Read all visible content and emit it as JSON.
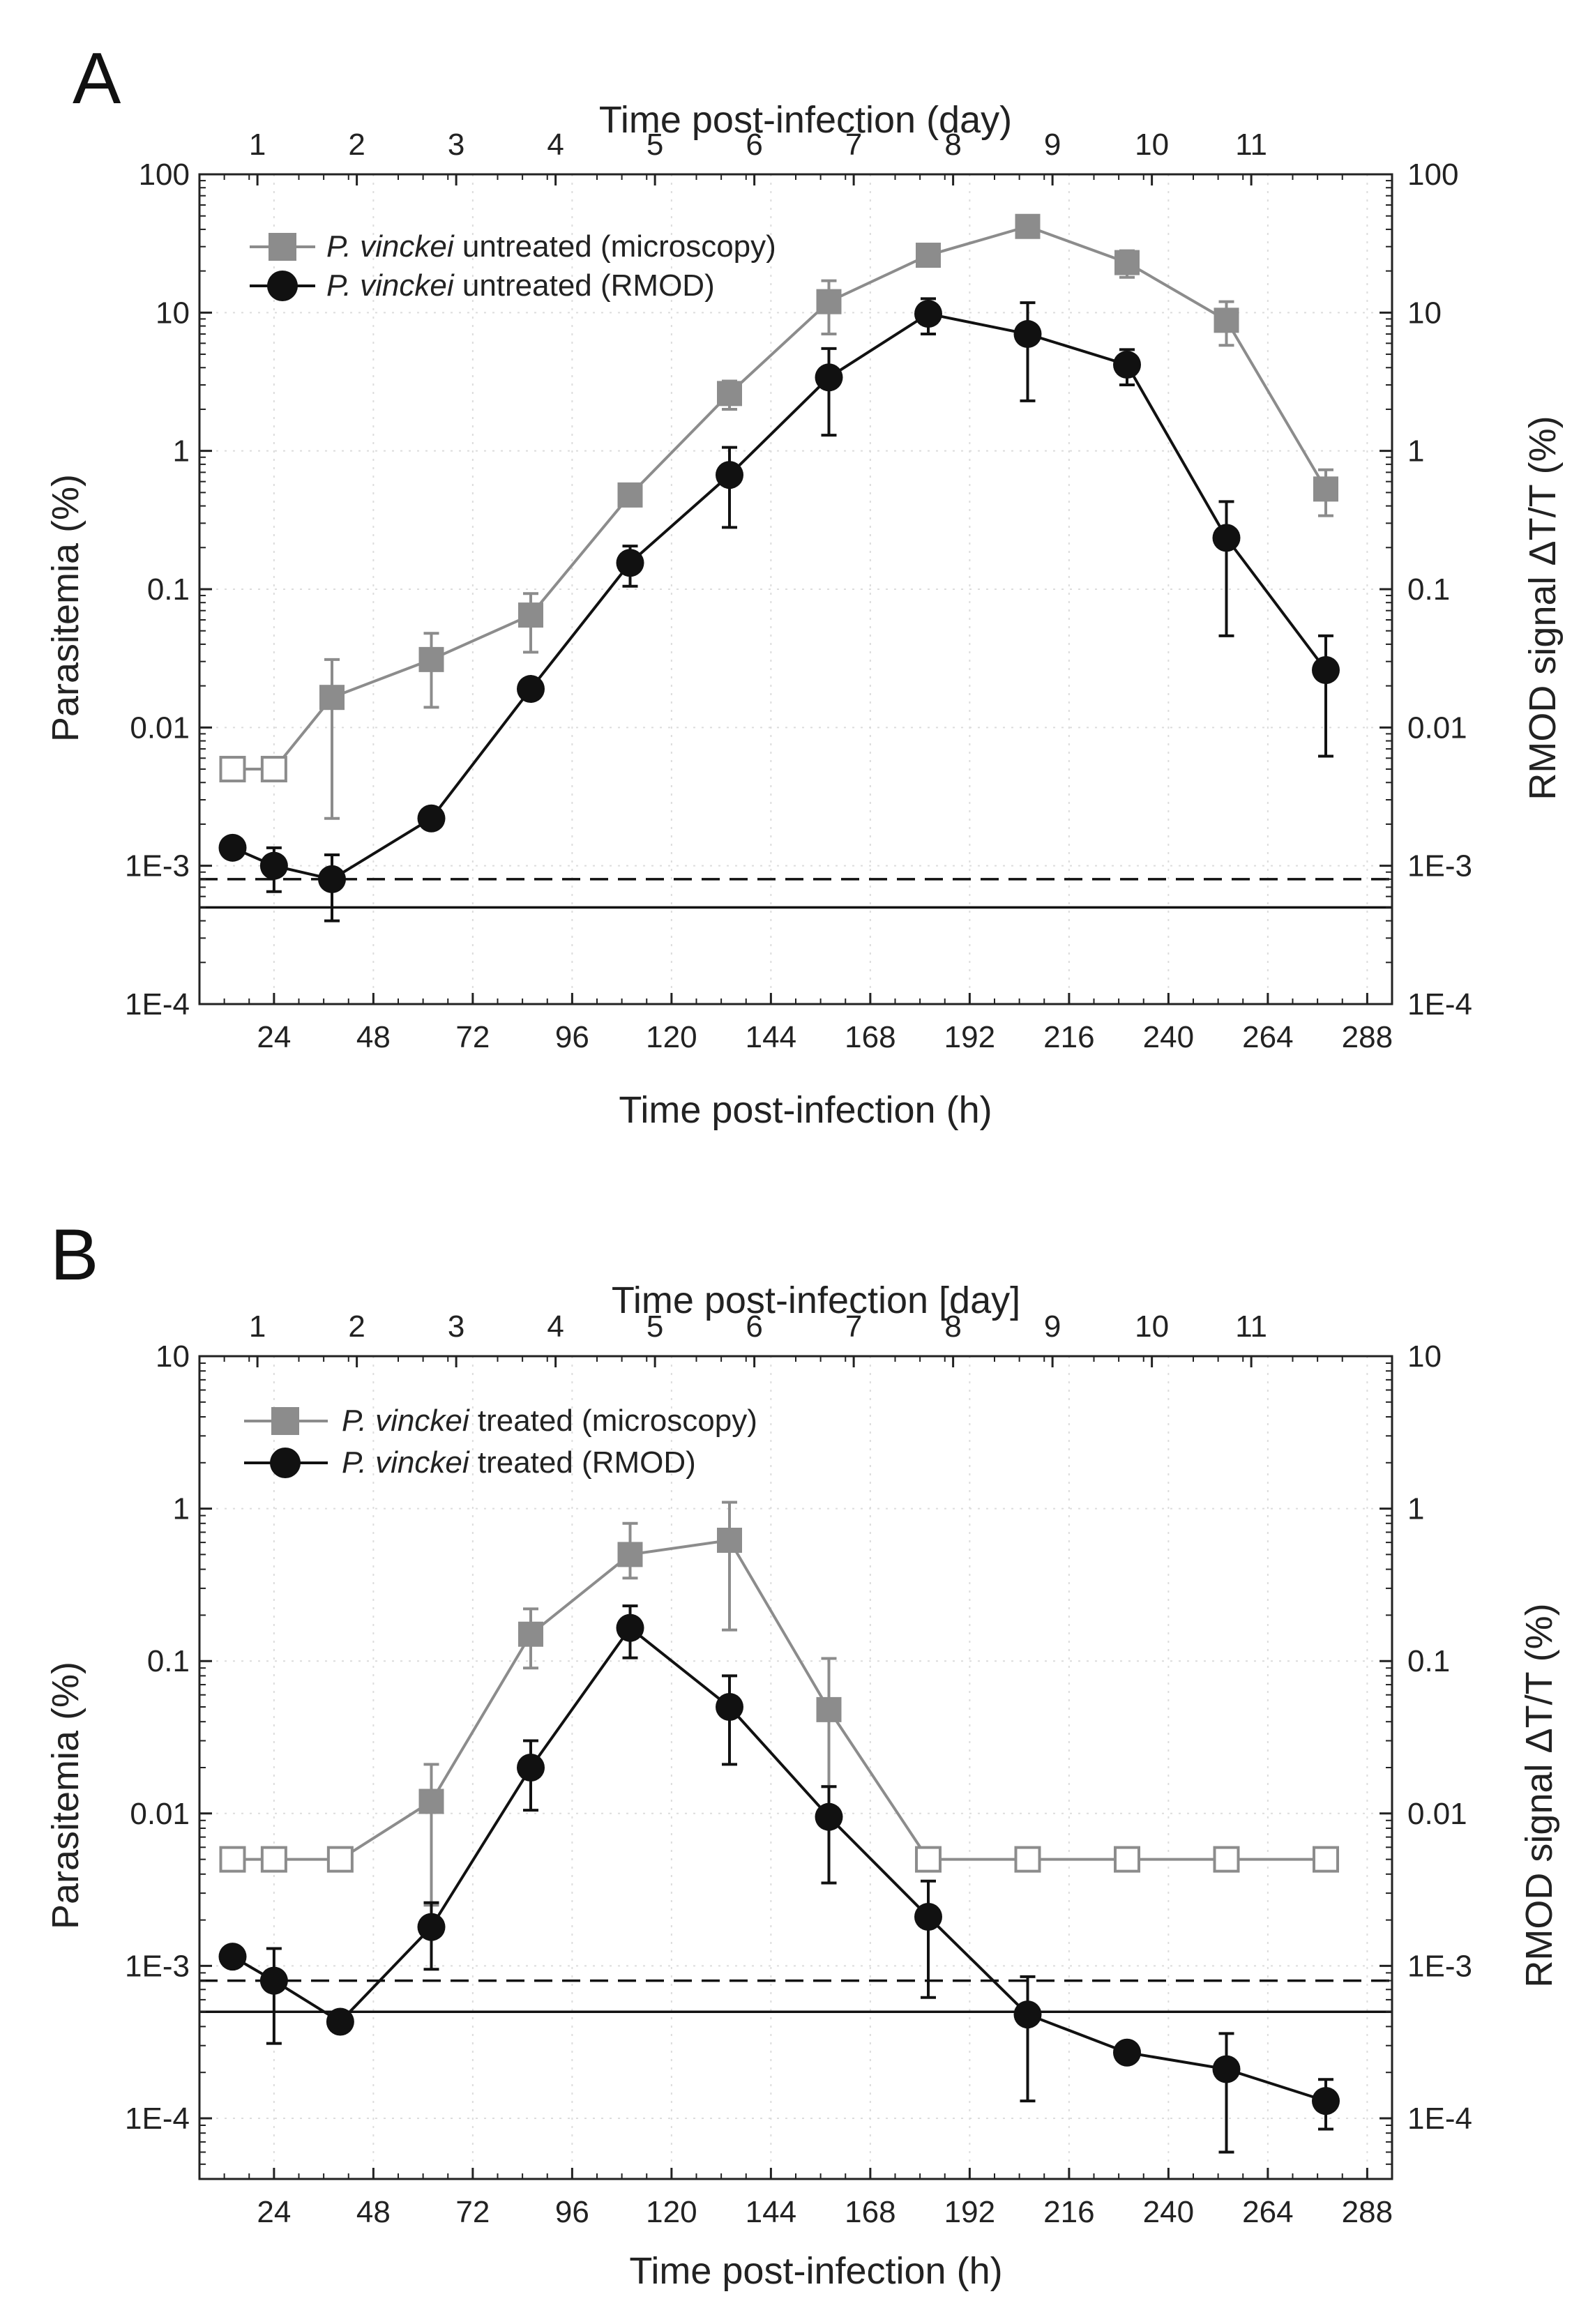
{
  "chart_data": [
    {
      "panel": "A",
      "type": "line",
      "yscale": "log",
      "xlabel": "Time post-infection (h)",
      "x2label": "Time post-infection (day)",
      "ylabel": "Parasitemia (%)",
      "y2label": "RMOD signal ΔT/T (%)",
      "xlim": [
        6,
        294
      ],
      "xticks": [
        24,
        48,
        72,
        96,
        120,
        144,
        168,
        192,
        216,
        240,
        264,
        288
      ],
      "x2ticks": [
        {
          "v": 20,
          "label": "1"
        },
        {
          "v": 44,
          "label": "2"
        },
        {
          "v": 68,
          "label": "3"
        },
        {
          "v": 92,
          "label": "4"
        },
        {
          "v": 116,
          "label": "5"
        },
        {
          "v": 140,
          "label": "6"
        },
        {
          "v": 164,
          "label": "7"
        },
        {
          "v": 188,
          "label": "8"
        },
        {
          "v": 212,
          "label": "9"
        },
        {
          "v": 236,
          "label": "10"
        },
        {
          "v": 260,
          "label": "11"
        }
      ],
      "ylim": [
        0.0001,
        100
      ],
      "yticks": [
        {
          "v": 0.0001,
          "label": "1E-4"
        },
        {
          "v": 0.001,
          "label": "1E-3"
        },
        {
          "v": 0.01,
          "label": "0.01"
        },
        {
          "v": 0.1,
          "label": "0.1"
        },
        {
          "v": 1,
          "label": "1"
        },
        {
          "v": 10,
          "label": "10"
        },
        {
          "v": 100,
          "label": "100"
        }
      ],
      "grid": true,
      "legend_position": "top-left",
      "dashed_line": 0.0008,
      "solid_line": 0.0005,
      "series": [
        {
          "name_italic": "P. vinckei",
          "name_rest": " untreated (microscopy)",
          "marker": "square",
          "color": "#8c8c8c",
          "points": [
            {
              "x": 14,
              "y": 0.005,
              "lo": 0.005,
              "hi": 0.005,
              "open": true
            },
            {
              "x": 24,
              "y": 0.005,
              "lo": 0.005,
              "hi": 0.005,
              "open": true
            },
            {
              "x": 38,
              "y": 0.0165,
              "lo": 0.0022,
              "hi": 0.031
            },
            {
              "x": 62,
              "y": 0.031,
              "lo": 0.014,
              "hi": 0.048
            },
            {
              "x": 86,
              "y": 0.065,
              "lo": 0.035,
              "hi": 0.093
            },
            {
              "x": 110,
              "y": 0.48,
              "lo": 0.4,
              "hi": 0.56
            },
            {
              "x": 134,
              "y": 2.6,
              "lo": 2.0,
              "hi": 3.2
            },
            {
              "x": 158,
              "y": 12,
              "lo": 7,
              "hi": 17
            },
            {
              "x": 182,
              "y": 26,
              "lo": 24,
              "hi": 28
            },
            {
              "x": 206,
              "y": 42,
              "lo": 40,
              "hi": 45
            },
            {
              "x": 230,
              "y": 23,
              "lo": 18,
              "hi": 28
            },
            {
              "x": 254,
              "y": 8.8,
              "lo": 5.8,
              "hi": 12
            },
            {
              "x": 278,
              "y": 0.53,
              "lo": 0.34,
              "hi": 0.73
            }
          ]
        },
        {
          "name_italic": "P. vinckei",
          "name_rest": " untreated (RMOD)",
          "marker": "circle",
          "color": "#111111",
          "points": [
            {
              "x": 14,
              "y": 0.00135,
              "lo": 0.00125,
              "hi": 0.00145
            },
            {
              "x": 24,
              "y": 0.001,
              "lo": 0.00065,
              "hi": 0.00135
            },
            {
              "x": 38,
              "y": 0.0008,
              "lo": 0.0004,
              "hi": 0.0012
            },
            {
              "x": 62,
              "y": 0.0022,
              "lo": 0.0021,
              "hi": 0.0023
            },
            {
              "x": 86,
              "y": 0.019,
              "lo": 0.017,
              "hi": 0.021
            },
            {
              "x": 110,
              "y": 0.155,
              "lo": 0.105,
              "hi": 0.205
            },
            {
              "x": 134,
              "y": 0.67,
              "lo": 0.28,
              "hi": 1.06
            },
            {
              "x": 158,
              "y": 3.4,
              "lo": 1.3,
              "hi": 5.5
            },
            {
              "x": 182,
              "y": 9.8,
              "lo": 7.0,
              "hi": 12.6
            },
            {
              "x": 206,
              "y": 7.0,
              "lo": 2.3,
              "hi": 11.8
            },
            {
              "x": 230,
              "y": 4.2,
              "lo": 3.0,
              "hi": 5.4
            },
            {
              "x": 254,
              "y": 0.235,
              "lo": 0.046,
              "hi": 0.43
            },
            {
              "x": 278,
              "y": 0.026,
              "lo": 0.0062,
              "hi": 0.046
            }
          ]
        }
      ]
    },
    {
      "panel": "B",
      "type": "line",
      "yscale": "log",
      "xlabel": "Time post-infection (h)",
      "x2label": "Time post-infection [day]",
      "ylabel": "Parasitemia (%)",
      "y2label": "RMOD signal ΔT/T (%)",
      "xlim": [
        6,
        294
      ],
      "xticks": [
        24,
        48,
        72,
        96,
        120,
        144,
        168,
        192,
        216,
        240,
        264,
        288
      ],
      "x2ticks": [
        {
          "v": 20,
          "label": "1"
        },
        {
          "v": 44,
          "label": "2"
        },
        {
          "v": 68,
          "label": "3"
        },
        {
          "v": 92,
          "label": "4"
        },
        {
          "v": 116,
          "label": "5"
        },
        {
          "v": 140,
          "label": "6"
        },
        {
          "v": 164,
          "label": "7"
        },
        {
          "v": 188,
          "label": "8"
        },
        {
          "v": 212,
          "label": "9"
        },
        {
          "v": 236,
          "label": "10"
        },
        {
          "v": 260,
          "label": "11"
        }
      ],
      "ylim": [
        4e-05,
        10
      ],
      "yticks": [
        {
          "v": 0.0001,
          "label": "1E-4"
        },
        {
          "v": 0.001,
          "label": "1E-3"
        },
        {
          "v": 0.01,
          "label": "0.01"
        },
        {
          "v": 0.1,
          "label": "0.1"
        },
        {
          "v": 1,
          "label": "1"
        },
        {
          "v": 10,
          "label": "10"
        }
      ],
      "grid": true,
      "legend_position": "top-left",
      "dashed_line": 0.0008,
      "solid_line": 0.0005,
      "series": [
        {
          "name_italic": "P. vinckei",
          "name_rest": " treated (microscopy)",
          "marker": "square",
          "color": "#8c8c8c",
          "points": [
            {
              "x": 14,
              "y": 0.005,
              "lo": 0.005,
              "hi": 0.005,
              "open": true
            },
            {
              "x": 24,
              "y": 0.005,
              "lo": 0.005,
              "hi": 0.005,
              "open": true
            },
            {
              "x": 40,
              "y": 0.005,
              "lo": 0.005,
              "hi": 0.005,
              "open": true
            },
            {
              "x": 62,
              "y": 0.012,
              "lo": 0.0025,
              "hi": 0.021
            },
            {
              "x": 86,
              "y": 0.15,
              "lo": 0.09,
              "hi": 0.22
            },
            {
              "x": 110,
              "y": 0.5,
              "lo": 0.35,
              "hi": 0.8
            },
            {
              "x": 134,
              "y": 0.62,
              "lo": 0.16,
              "hi": 1.1
            },
            {
              "x": 158,
              "y": 0.048,
              "lo": 0.015,
              "hi": 0.104
            },
            {
              "x": 182,
              "y": 0.005,
              "lo": 0.005,
              "hi": 0.005,
              "open": true
            },
            {
              "x": 206,
              "y": 0.005,
              "lo": 0.005,
              "hi": 0.005,
              "open": true
            },
            {
              "x": 230,
              "y": 0.005,
              "lo": 0.005,
              "hi": 0.005,
              "open": true
            },
            {
              "x": 254,
              "y": 0.005,
              "lo": 0.005,
              "hi": 0.005,
              "open": true
            },
            {
              "x": 278,
              "y": 0.005,
              "lo": 0.005,
              "hi": 0.005,
              "open": true
            }
          ]
        },
        {
          "name_italic": "P. vinckei",
          "name_rest": " treated (RMOD)",
          "marker": "circle",
          "color": "#111111",
          "points": [
            {
              "x": 14,
              "y": 0.00115,
              "lo": 0.00108,
              "hi": 0.00122
            },
            {
              "x": 24,
              "y": 0.0008,
              "lo": 0.00031,
              "hi": 0.0013
            },
            {
              "x": 40,
              "y": 0.00043,
              "lo": 0.0004,
              "hi": 0.00046
            },
            {
              "x": 62,
              "y": 0.0018,
              "lo": 0.00095,
              "hi": 0.0026
            },
            {
              "x": 86,
              "y": 0.02,
              "lo": 0.0105,
              "hi": 0.03
            },
            {
              "x": 110,
              "y": 0.165,
              "lo": 0.105,
              "hi": 0.23
            },
            {
              "x": 134,
              "y": 0.05,
              "lo": 0.021,
              "hi": 0.08
            },
            {
              "x": 158,
              "y": 0.0095,
              "lo": 0.0035,
              "hi": 0.015
            },
            {
              "x": 182,
              "y": 0.0021,
              "lo": 0.00062,
              "hi": 0.0036
            },
            {
              "x": 206,
              "y": 0.00048,
              "lo": 0.00013,
              "hi": 0.00085
            },
            {
              "x": 230,
              "y": 0.00027,
              "lo": 0.00025,
              "hi": 0.00029
            },
            {
              "x": 254,
              "y": 0.00021,
              "lo": 6e-05,
              "hi": 0.00036
            },
            {
              "x": 278,
              "y": 0.00013,
              "lo": 8.5e-05,
              "hi": 0.00018
            }
          ]
        }
      ]
    }
  ]
}
